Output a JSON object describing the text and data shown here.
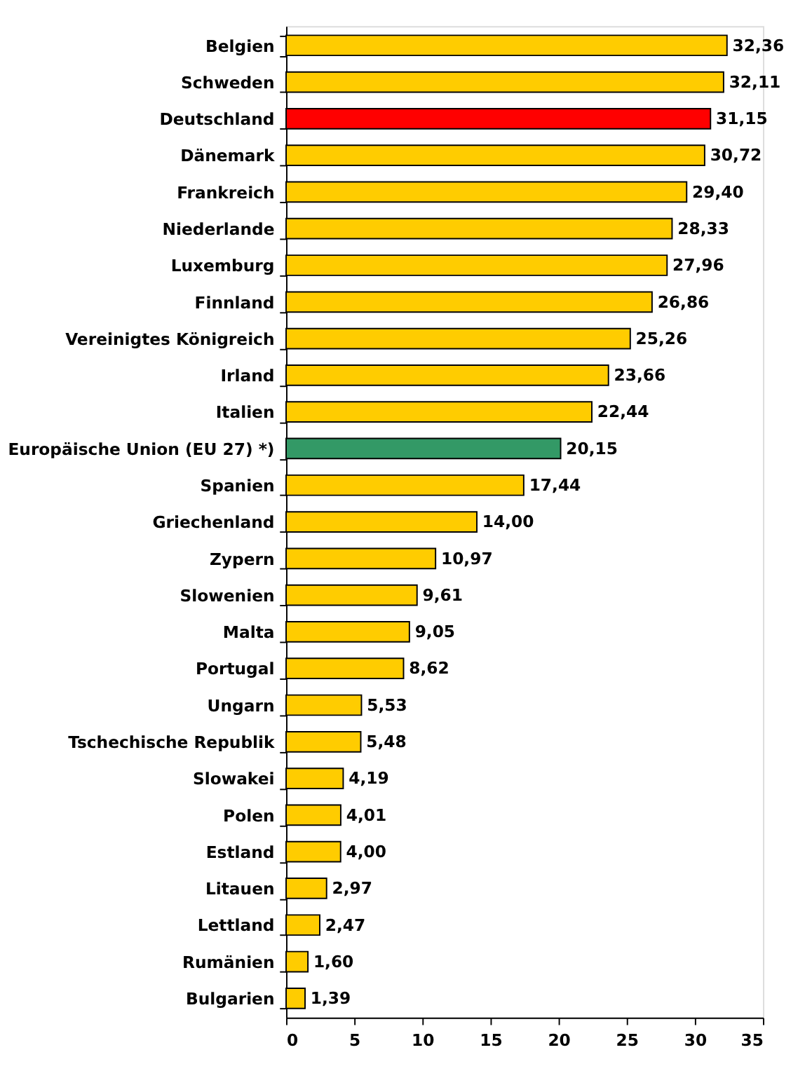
{
  "chart_data": {
    "type": "bar",
    "orientation": "horizontal",
    "categories": [
      "Belgien",
      "Schweden",
      "Deutschland",
      "Dänemark",
      "Frankreich",
      "Niederlande",
      "Luxemburg",
      "Finnland",
      "Vereinigtes Königreich",
      "Irland",
      "Italien",
      "Europäische Union (EU 27) *)",
      "Spanien",
      "Griechenland",
      "Zypern",
      "Slowenien",
      "Malta",
      "Portugal",
      "Ungarn",
      "Tschechische Republik",
      "Slowakei",
      "Polen",
      "Estland",
      "Litauen",
      "Lettland",
      "Rumänien",
      "Bulgarien"
    ],
    "values": [
      32.36,
      32.11,
      31.15,
      30.72,
      29.4,
      28.33,
      27.96,
      26.86,
      25.26,
      23.66,
      22.44,
      20.15,
      17.44,
      14.0,
      10.97,
      9.61,
      9.05,
      8.62,
      5.53,
      5.48,
      4.19,
      4.01,
      4.0,
      2.97,
      2.47,
      1.6,
      1.39
    ],
    "value_labels": [
      "32,36",
      "32,11",
      "31,15",
      "30,72",
      "29,40",
      "28,33",
      "27,96",
      "26,86",
      "25,26",
      "23,66",
      "22,44",
      "20,15",
      "17,44",
      "14,00",
      "10,97",
      "9,61",
      "9,05",
      "8,62",
      "5,53",
      "5,48",
      "4,19",
      "4,01",
      "4,00",
      "2,97",
      "2,47",
      "1,60",
      "1,39"
    ],
    "colors": [
      "#ffcc00",
      "#ffcc00",
      "#ff0000",
      "#ffcc00",
      "#ffcc00",
      "#ffcc00",
      "#ffcc00",
      "#ffcc00",
      "#ffcc00",
      "#ffcc00",
      "#ffcc00",
      "#339966",
      "#ffcc00",
      "#ffcc00",
      "#ffcc00",
      "#ffcc00",
      "#ffcc00",
      "#ffcc00",
      "#ffcc00",
      "#ffcc00",
      "#ffcc00",
      "#ffcc00",
      "#ffcc00",
      "#ffcc00",
      "#ffcc00",
      "#ffcc00",
      "#ffcc00"
    ],
    "xlim": [
      0,
      35
    ],
    "xticks": [
      0,
      5,
      10,
      15,
      20,
      25,
      30,
      35
    ],
    "grid": false
  }
}
